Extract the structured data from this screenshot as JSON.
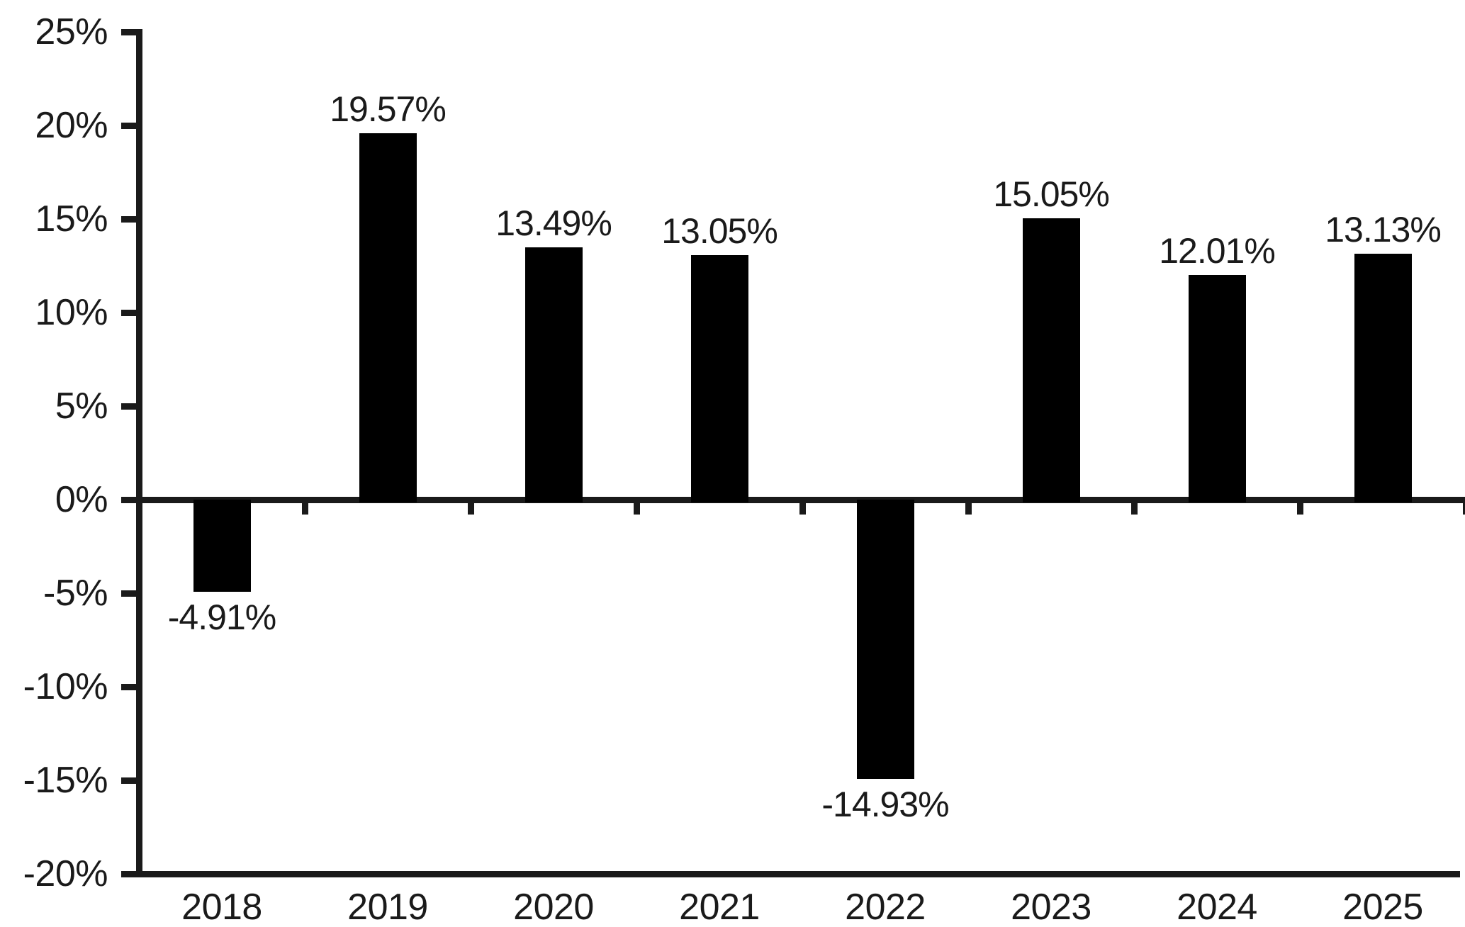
{
  "chart_data": {
    "type": "bar",
    "title": "",
    "xlabel": "",
    "ylabel": "",
    "categories": [
      "2018",
      "2019",
      "2020",
      "2021",
      "2022",
      "2023",
      "2024",
      "2025"
    ],
    "values": [
      -4.91,
      19.57,
      13.49,
      13.05,
      -14.93,
      15.05,
      12.01,
      13.13
    ],
    "data_labels": [
      "-4.91%",
      "19.57%",
      "13.49%",
      "13.05%",
      "-14.93%",
      "15.05%",
      "12.01%",
      "13.13%"
    ],
    "yticks": [
      25,
      20,
      15,
      10,
      5,
      0,
      -5,
      -10,
      -15,
      -20
    ],
    "ytick_labels": [
      "25%",
      "20%",
      "15%",
      "10%",
      "5%",
      "0%",
      "-5%",
      "-10%",
      "-15%",
      "-20%"
    ],
    "ylim": [
      -20,
      25
    ],
    "grid": false,
    "legend": false,
    "data_label_position": "outside-end",
    "bar_color": "#000000",
    "axis_color": "#1a1a1a",
    "text_color": "#1a1a1a",
    "background": "#ffffff"
  }
}
